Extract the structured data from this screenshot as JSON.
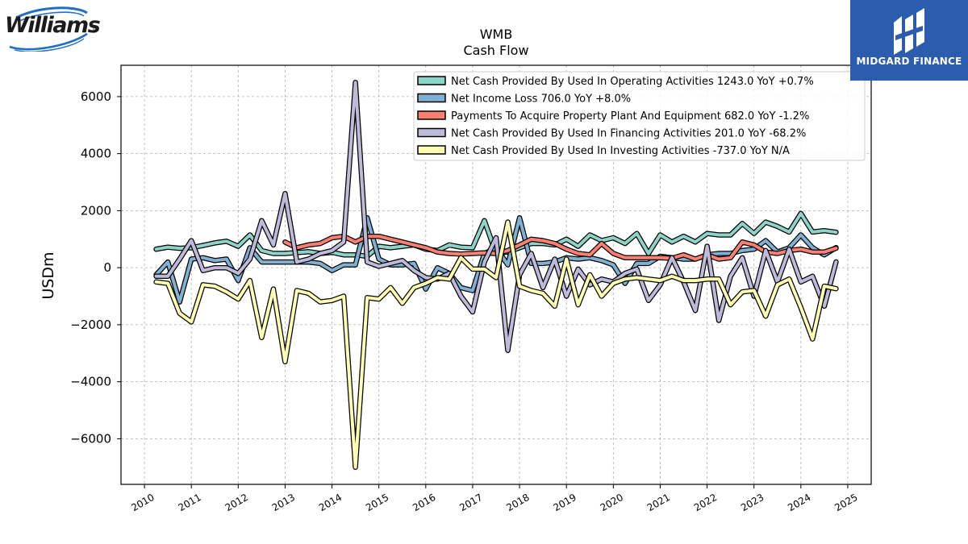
{
  "brand": {
    "company_logo_text": "Williams",
    "publisher": "MIDGARD FINANCE"
  },
  "chart_data": {
    "type": "line",
    "title": "WMB",
    "subtitle": "Cash Flow",
    "xlabel": "",
    "ylabel": "USDm",
    "xlim": [
      2009.5,
      2025.5
    ],
    "ylim": [
      -7600,
      7100
    ],
    "xticks": [
      2010,
      2011,
      2012,
      2013,
      2014,
      2015,
      2016,
      2017,
      2018,
      2019,
      2020,
      2021,
      2022,
      2023,
      2024,
      2025
    ],
    "yticks": [
      -6000,
      -4000,
      -2000,
      0,
      2000,
      4000,
      6000
    ],
    "grid": true,
    "legend_position": "top-right",
    "series": [
      {
        "name": "Net Cash Provided By Used In Operating Activities",
        "legend": "Net Cash Provided By Used In Operating Activities  1243.0 YoY +0.7%",
        "color": "#8dd3c7",
        "points": [
          [
            2010.25,
            650
          ],
          [
            2010.5,
            720
          ],
          [
            2010.75,
            680
          ],
          [
            2011.0,
            700
          ],
          [
            2011.25,
            780
          ],
          [
            2011.5,
            870
          ],
          [
            2011.75,
            930
          ],
          [
            2012.0,
            750
          ],
          [
            2012.25,
            1150
          ],
          [
            2012.5,
            600
          ],
          [
            2012.75,
            500
          ],
          [
            2013.0,
            500
          ],
          [
            2013.25,
            530
          ],
          [
            2013.5,
            560
          ],
          [
            2013.75,
            500
          ],
          [
            2014.0,
            540
          ],
          [
            2014.25,
            450
          ],
          [
            2014.5,
            450
          ],
          [
            2014.75,
            400
          ],
          [
            2015.0,
            750
          ],
          [
            2015.25,
            700
          ],
          [
            2015.5,
            750
          ],
          [
            2015.75,
            800
          ],
          [
            2016.0,
            650
          ],
          [
            2016.25,
            600
          ],
          [
            2016.5,
            800
          ],
          [
            2016.75,
            720
          ],
          [
            2017.0,
            700
          ],
          [
            2017.25,
            1650
          ],
          [
            2017.5,
            500
          ],
          [
            2017.75,
            550
          ],
          [
            2018.0,
            700
          ],
          [
            2018.25,
            850
          ],
          [
            2018.5,
            850
          ],
          [
            2018.75,
            800
          ],
          [
            2019.0,
            1000
          ],
          [
            2019.25,
            750
          ],
          [
            2019.5,
            1150
          ],
          [
            2019.75,
            950
          ],
          [
            2020.0,
            1050
          ],
          [
            2020.25,
            850
          ],
          [
            2020.5,
            1200
          ],
          [
            2020.75,
            500
          ],
          [
            2021.0,
            1150
          ],
          [
            2021.25,
            900
          ],
          [
            2021.5,
            1100
          ],
          [
            2021.75,
            900
          ],
          [
            2022.0,
            1200
          ],
          [
            2022.25,
            1150
          ],
          [
            2022.5,
            1150
          ],
          [
            2022.75,
            1550
          ],
          [
            2023.0,
            1200
          ],
          [
            2023.25,
            1600
          ],
          [
            2023.5,
            1450
          ],
          [
            2023.75,
            1250
          ],
          [
            2024.0,
            1900
          ],
          [
            2024.25,
            1250
          ],
          [
            2024.5,
            1300
          ],
          [
            2024.75,
            1243
          ]
        ]
      },
      {
        "name": "Net Income Loss",
        "legend": "Net Income Loss  706.0 YoY +8.0%",
        "color": "#80b1d3",
        "points": [
          [
            2010.25,
            -250
          ],
          [
            2010.5,
            200
          ],
          [
            2010.75,
            -1200
          ],
          [
            2011.0,
            300
          ],
          [
            2011.25,
            350
          ],
          [
            2011.5,
            250
          ],
          [
            2011.75,
            300
          ],
          [
            2012.0,
            -450
          ],
          [
            2012.25,
            700
          ],
          [
            2012.5,
            200
          ],
          [
            2012.75,
            200
          ],
          [
            2013.0,
            200
          ],
          [
            2013.25,
            200
          ],
          [
            2013.5,
            200
          ],
          [
            2013.75,
            150
          ],
          [
            2014.0,
            -100
          ],
          [
            2014.25,
            100
          ],
          [
            2014.5,
            100
          ],
          [
            2014.75,
            1750
          ],
          [
            2015.0,
            300
          ],
          [
            2015.25,
            100
          ],
          [
            2015.5,
            100
          ],
          [
            2015.75,
            150
          ],
          [
            2016.0,
            -750
          ],
          [
            2016.25,
            0
          ],
          [
            2016.5,
            -200
          ],
          [
            2016.75,
            -700
          ],
          [
            2017.0,
            -800
          ],
          [
            2017.25,
            500
          ],
          [
            2017.5,
            700
          ],
          [
            2017.75,
            100
          ],
          [
            2018.0,
            1750
          ],
          [
            2018.25,
            150
          ],
          [
            2018.5,
            150
          ],
          [
            2018.75,
            200
          ],
          [
            2019.0,
            350
          ],
          [
            2019.25,
            300
          ],
          [
            2019.5,
            350
          ],
          [
            2019.75,
            250
          ],
          [
            2020.0,
            100
          ],
          [
            2020.25,
            -550
          ],
          [
            2020.5,
            150
          ],
          [
            2020.75,
            150
          ],
          [
            2021.0,
            400
          ],
          [
            2021.25,
            350
          ],
          [
            2021.5,
            300
          ],
          [
            2021.75,
            300
          ],
          [
            2022.0,
            450
          ],
          [
            2022.25,
            500
          ],
          [
            2022.5,
            500
          ],
          [
            2022.75,
            600
          ],
          [
            2023.0,
            650
          ],
          [
            2023.25,
            950
          ],
          [
            2023.5,
            550
          ],
          [
            2023.75,
            700
          ],
          [
            2024.0,
            1150
          ],
          [
            2024.25,
            700
          ],
          [
            2024.5,
            450
          ],
          [
            2024.75,
            706
          ]
        ]
      },
      {
        "name": "Payments To Acquire Property Plant And Equipment",
        "legend": "Payments To Acquire Property Plant And Equipment  682.0 YoY -1.2%",
        "color": "#fb8072",
        "points": [
          [
            2013.0,
            900
          ],
          [
            2013.25,
            700
          ],
          [
            2013.5,
            800
          ],
          [
            2013.75,
            850
          ],
          [
            2014.0,
            1050
          ],
          [
            2014.25,
            1100
          ],
          [
            2014.5,
            900
          ],
          [
            2014.75,
            1100
          ],
          [
            2015.0,
            1100
          ],
          [
            2015.25,
            1000
          ],
          [
            2015.5,
            900
          ],
          [
            2015.75,
            800
          ],
          [
            2016.0,
            700
          ],
          [
            2016.25,
            550
          ],
          [
            2016.5,
            500
          ],
          [
            2016.75,
            480
          ],
          [
            2017.0,
            500
          ],
          [
            2017.25,
            520
          ],
          [
            2017.5,
            500
          ],
          [
            2017.75,
            600
          ],
          [
            2018.0,
            800
          ],
          [
            2018.25,
            1000
          ],
          [
            2018.5,
            950
          ],
          [
            2018.75,
            850
          ],
          [
            2019.0,
            650
          ],
          [
            2019.25,
            500
          ],
          [
            2019.5,
            450
          ],
          [
            2019.75,
            850
          ],
          [
            2020.0,
            500
          ],
          [
            2020.25,
            350
          ],
          [
            2020.5,
            350
          ],
          [
            2020.75,
            350
          ],
          [
            2021.0,
            350
          ],
          [
            2021.25,
            330
          ],
          [
            2021.5,
            450
          ],
          [
            2021.75,
            300
          ],
          [
            2022.0,
            450
          ],
          [
            2022.25,
            300
          ],
          [
            2022.5,
            350
          ],
          [
            2022.75,
            900
          ],
          [
            2023.0,
            800
          ],
          [
            2023.25,
            550
          ],
          [
            2023.5,
            500
          ],
          [
            2023.75,
            600
          ],
          [
            2024.0,
            650
          ],
          [
            2024.25,
            550
          ],
          [
            2024.5,
            550
          ],
          [
            2024.75,
            682
          ]
        ]
      },
      {
        "name": "Net Cash Provided By Used In Financing Activities",
        "legend": "Net Cash Provided By Used In Financing Activities  201.0 YoY -68.2%",
        "color": "#bebada",
        "points": [
          [
            2010.25,
            -300
          ],
          [
            2010.5,
            -300
          ],
          [
            2010.75,
            300
          ],
          [
            2011.0,
            950
          ],
          [
            2011.25,
            -100
          ],
          [
            2011.5,
            0
          ],
          [
            2011.75,
            0
          ],
          [
            2012.0,
            -200
          ],
          [
            2012.25,
            300
          ],
          [
            2012.5,
            1650
          ],
          [
            2012.75,
            800
          ],
          [
            2013.0,
            2600
          ],
          [
            2013.25,
            200
          ],
          [
            2013.5,
            300
          ],
          [
            2013.75,
            500
          ],
          [
            2014.0,
            600
          ],
          [
            2014.25,
            900
          ],
          [
            2014.5,
            6500
          ],
          [
            2014.75,
            200
          ],
          [
            2015.0,
            50
          ],
          [
            2015.25,
            150
          ],
          [
            2015.5,
            250
          ],
          [
            2015.75,
            -100
          ],
          [
            2016.0,
            -350
          ],
          [
            2016.25,
            -400
          ],
          [
            2016.5,
            -200
          ],
          [
            2016.75,
            -1000
          ],
          [
            2017.0,
            -1550
          ],
          [
            2017.25,
            200
          ],
          [
            2017.5,
            1050
          ],
          [
            2017.75,
            -2900
          ],
          [
            2018.0,
            -250
          ],
          [
            2018.25,
            500
          ],
          [
            2018.5,
            -700
          ],
          [
            2018.75,
            300
          ],
          [
            2019.0,
            -1000
          ],
          [
            2019.25,
            -50
          ],
          [
            2019.5,
            -600
          ],
          [
            2019.75,
            -400
          ],
          [
            2020.0,
            -500
          ],
          [
            2020.25,
            -200
          ],
          [
            2020.5,
            -50
          ],
          [
            2020.75,
            -1150
          ],
          [
            2021.0,
            -600
          ],
          [
            2021.25,
            350
          ],
          [
            2021.5,
            -500
          ],
          [
            2021.75,
            -1500
          ],
          [
            2022.0,
            750
          ],
          [
            2022.25,
            -1850
          ],
          [
            2022.5,
            -300
          ],
          [
            2022.75,
            350
          ],
          [
            2023.0,
            -1000
          ],
          [
            2023.25,
            600
          ],
          [
            2023.5,
            -500
          ],
          [
            2023.75,
            650
          ],
          [
            2024.0,
            -500
          ],
          [
            2024.25,
            -300
          ],
          [
            2024.5,
            -1350
          ],
          [
            2024.75,
            201
          ]
        ]
      },
      {
        "name": "Net Cash Provided By Used In Investing Activities",
        "legend": "Net Cash Provided By Used In Investing Activities  -737.0 YoY N/A",
        "color": "#ffffb3",
        "points": [
          [
            2010.25,
            -500
          ],
          [
            2010.5,
            -550
          ],
          [
            2010.75,
            -1600
          ],
          [
            2011.0,
            -1900
          ],
          [
            2011.25,
            -600
          ],
          [
            2011.5,
            -650
          ],
          [
            2011.75,
            -850
          ],
          [
            2012.0,
            -1100
          ],
          [
            2012.25,
            -450
          ],
          [
            2012.5,
            -2450
          ],
          [
            2012.75,
            -750
          ],
          [
            2013.0,
            -3300
          ],
          [
            2013.25,
            -800
          ],
          [
            2013.5,
            -900
          ],
          [
            2013.75,
            -1200
          ],
          [
            2014.0,
            -1150
          ],
          [
            2014.25,
            -1000
          ],
          [
            2014.5,
            -7000
          ],
          [
            2014.75,
            -1050
          ],
          [
            2015.0,
            -1100
          ],
          [
            2015.25,
            -700
          ],
          [
            2015.5,
            -1250
          ],
          [
            2015.75,
            -700
          ],
          [
            2016.0,
            -550
          ],
          [
            2016.25,
            -350
          ],
          [
            2016.5,
            -400
          ],
          [
            2016.75,
            350
          ],
          [
            2017.0,
            -50
          ],
          [
            2017.25,
            -50
          ],
          [
            2017.5,
            -350
          ],
          [
            2017.75,
            1600
          ],
          [
            2018.0,
            -650
          ],
          [
            2018.25,
            -800
          ],
          [
            2018.5,
            -900
          ],
          [
            2018.75,
            -1350
          ],
          [
            2019.0,
            300
          ],
          [
            2019.25,
            -1300
          ],
          [
            2019.5,
            -250
          ],
          [
            2019.75,
            -1000
          ],
          [
            2020.0,
            -550
          ],
          [
            2020.25,
            -400
          ],
          [
            2020.5,
            -350
          ],
          [
            2020.75,
            -400
          ],
          [
            2021.0,
            -450
          ],
          [
            2021.25,
            -300
          ],
          [
            2021.5,
            -450
          ],
          [
            2021.75,
            -450
          ],
          [
            2022.0,
            -400
          ],
          [
            2022.25,
            -400
          ],
          [
            2022.5,
            -1300
          ],
          [
            2022.75,
            -850
          ],
          [
            2023.0,
            -800
          ],
          [
            2023.25,
            -1700
          ],
          [
            2023.5,
            -600
          ],
          [
            2023.75,
            -400
          ],
          [
            2024.0,
            -1400
          ],
          [
            2024.25,
            -2500
          ],
          [
            2024.5,
            -650
          ],
          [
            2024.75,
            -737
          ]
        ]
      }
    ]
  }
}
